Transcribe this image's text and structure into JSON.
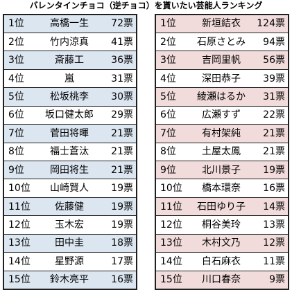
{
  "title": "バレンタインチョコ（逆チョコ）を貰いたい芸能人ランキング",
  "colors": {
    "left_band": "#dce6f1",
    "left_band_strong": "#b8cce4",
    "right_band": "#f2dcdb",
    "right_band_strong": "#e6b8b7",
    "border": "#1f1f1f"
  },
  "men": [
    {
      "rank": "1位",
      "name": "高橋一生",
      "votes": "72票"
    },
    {
      "rank": "2位",
      "name": "竹内涼真",
      "votes": "41票"
    },
    {
      "rank": "3位",
      "name": "斎藤工",
      "votes": "36票"
    },
    {
      "rank": "4位",
      "name": "嵐",
      "votes": "31票"
    },
    {
      "rank": "5位",
      "name": "松坂桃李",
      "votes": "30票"
    },
    {
      "rank": "6位",
      "name": "坂口健太郎",
      "votes": "29票"
    },
    {
      "rank": "7位",
      "name": "菅田将暉",
      "votes": "21票"
    },
    {
      "rank": "8位",
      "name": "福士蒼汰",
      "votes": "21票"
    },
    {
      "rank": "9位",
      "name": "岡田将生",
      "votes": "21票"
    },
    {
      "rank": "10位",
      "name": "山崎賢人",
      "votes": "19票"
    },
    {
      "rank": "11位",
      "name": "佐藤健",
      "votes": "19票"
    },
    {
      "rank": "12位",
      "name": "玉木宏",
      "votes": "19票"
    },
    {
      "rank": "13位",
      "name": "田中圭",
      "votes": "18票"
    },
    {
      "rank": "14位",
      "name": "星野源",
      "votes": "17票"
    },
    {
      "rank": "15位",
      "name": "鈴木亮平",
      "votes": "16票"
    }
  ],
  "women": [
    {
      "rank": "1位",
      "name": "新垣結衣",
      "votes": "124票"
    },
    {
      "rank": "2位",
      "name": "石原さとみ",
      "votes": "94票"
    },
    {
      "rank": "3位",
      "name": "吉岡里帆",
      "votes": "56票"
    },
    {
      "rank": "4位",
      "name": "深田恭子",
      "votes": "39票"
    },
    {
      "rank": "5位",
      "name": "綾瀬はるか",
      "votes": "31票"
    },
    {
      "rank": "6位",
      "name": "広瀬すず",
      "votes": "22票"
    },
    {
      "rank": "7位",
      "name": "有村架純",
      "votes": "21票"
    },
    {
      "rank": "8位",
      "name": "土屋太鳳",
      "votes": "21票"
    },
    {
      "rank": "9位",
      "name": "北川景子",
      "votes": "19票"
    },
    {
      "rank": "10位",
      "name": "橋本環奈",
      "votes": "16票"
    },
    {
      "rank": "11位",
      "name": "石田ゆり子",
      "votes": "14票"
    },
    {
      "rank": "12位",
      "name": "桐谷美玲",
      "votes": "13票"
    },
    {
      "rank": "13位",
      "name": "木村文乃",
      "votes": "12票"
    },
    {
      "rank": "14位",
      "name": "白石麻衣",
      "votes": "11票"
    },
    {
      "rank": "15位",
      "name": "川口春奈",
      "votes": "9票"
    }
  ]
}
